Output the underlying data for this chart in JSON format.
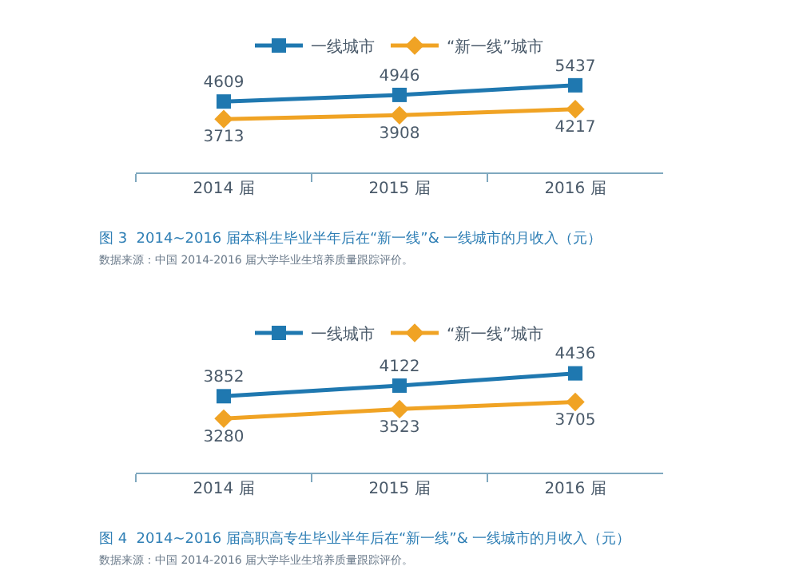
{
  "chart_data": [
    {
      "type": "line",
      "categories": [
        "2014 届",
        "2015 届",
        "2016 届"
      ],
      "legend": "top",
      "data_labels": true,
      "tick_labels": "x",
      "series": [
        {
          "name": "一线城市",
          "color": "#1f78b0",
          "marker": "square",
          "values": [
            4609,
            4946,
            5437
          ]
        },
        {
          "name": "“新一线”城市",
          "color": "#f0a324",
          "marker": "diamond",
          "values": [
            3713,
            3908,
            4217
          ]
        }
      ],
      "annotations": [
        "图 3  2014~2016 届本科生毕业半年后在“新一线”& 一线城市的月收入（元）",
        "数据来源：中国 2014-2016 届大学毕业生培养质量跟踪评价。"
      ]
    },
    {
      "type": "line",
      "categories": [
        "2014 届",
        "2015 届",
        "2016 届"
      ],
      "legend": "top",
      "data_labels": true,
      "tick_labels": "x",
      "series": [
        {
          "name": "一线城市",
          "color": "#1f78b0",
          "marker": "square",
          "values": [
            3852,
            4122,
            4436
          ]
        },
        {
          "name": "“新一线”城市",
          "color": "#f0a324",
          "marker": "diamond",
          "values": [
            3280,
            3523,
            3705
          ]
        }
      ],
      "annotations": [
        "图 4  2014~2016 届高职高专生毕业半年后在“新一线”& 一线城市的月收入（元）",
        "数据来源：中国 2014-2016 届大学毕业生培养质量跟踪评价。"
      ]
    }
  ]
}
